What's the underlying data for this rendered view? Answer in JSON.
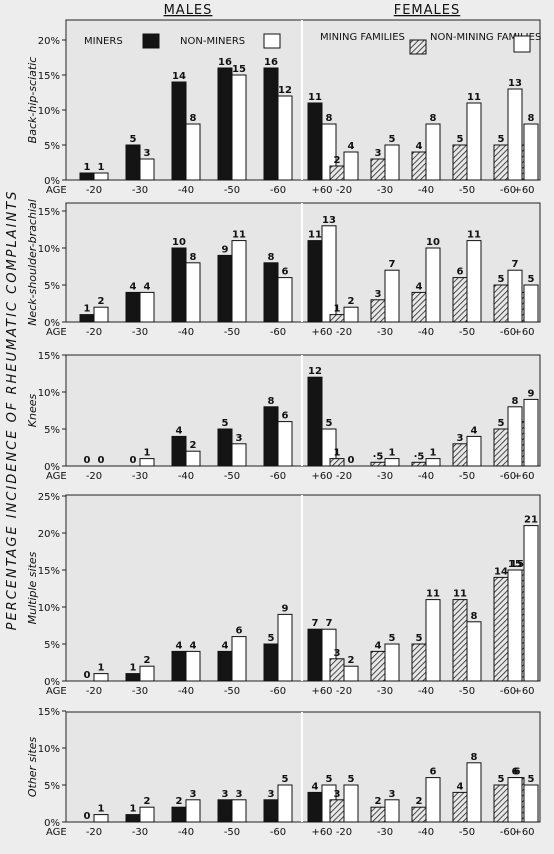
{
  "headers": {
    "males": "MALES",
    "females": "FEMALES"
  },
  "side_title": "PERCENTAGE   INCIDENCE   OF   RHEUMATIC   COMPLAINTS",
  "legend": {
    "males": [
      "MINERS",
      "NON-MINERS"
    ],
    "females": [
      "MINING FAMILIES",
      "NON-MINING FAMILIES"
    ]
  },
  "colors": {
    "miners": "#141414",
    "non_miners": "#ffffff",
    "mining_families": "hatched",
    "non_mining_families": "#ffffff"
  },
  "chart_data": {
    "type": "bar",
    "x_label": "AGE",
    "categories": [
      "-20",
      "-30",
      "-40",
      "-50",
      "-60",
      "+60"
    ],
    "panels": [
      {
        "name": "Back-hip-sciatic",
        "ylim": [
          0,
          20
        ],
        "yticks": [
          "0%",
          "5%",
          "10%",
          "15%",
          "20%"
        ],
        "males": [
          {
            "name": "MINERS",
            "values": [
              1,
              5,
              14,
              16,
              16,
              11
            ],
            "labels": [
              "1",
              "5",
              "14",
              "16",
              "16",
              "11"
            ]
          },
          {
            "name": "NON-MINERS",
            "values": [
              1,
              3,
              8,
              15,
              12,
              8
            ],
            "labels": [
              "1",
              "3",
              "8",
              "15",
              "12",
              "8"
            ]
          }
        ],
        "females": [
          {
            "name": "MINING FAMILIES",
            "values": [
              2,
              3,
              4,
              5,
              5,
              5
            ],
            "labels": [
              "2",
              "3",
              "4",
              "5",
              "5",
              "5"
            ]
          },
          {
            "name": "NON-MINING FAMILIES",
            "values": [
              4,
              5,
              8,
              11,
              13,
              8
            ],
            "labels": [
              "4",
              "5",
              "8",
              "11",
              "13",
              "8"
            ]
          }
        ]
      },
      {
        "name": "Neck-shoulder-brachial",
        "ylim": [
          0,
          15
        ],
        "yticks": [
          "0%",
          "5%",
          "10%",
          "15%"
        ],
        "males": [
          {
            "name": "MINERS",
            "values": [
              1,
              4,
              10,
              9,
              8,
              11
            ],
            "labels": [
              "1",
              "4",
              "10",
              "9",
              "8",
              "11"
            ]
          },
          {
            "name": "NON-MINERS",
            "values": [
              2,
              4,
              8,
              11,
              6,
              13
            ],
            "labels": [
              "2",
              "4",
              "8",
              "11",
              "6",
              "13"
            ]
          }
        ],
        "females": [
          {
            "name": "MINING FAMILIES",
            "values": [
              1,
              3,
              4,
              6,
              5,
              4
            ],
            "labels": [
              "1",
              "3",
              "4",
              "6",
              "5",
              "4"
            ]
          },
          {
            "name": "NON-MINING FAMILIES",
            "values": [
              2,
              7,
              10,
              11,
              7,
              5
            ],
            "labels": [
              "2",
              "7",
              "10",
              "11",
              "7",
              "5"
            ]
          }
        ]
      },
      {
        "name": "Knees",
        "ylim": [
          0,
          15
        ],
        "yticks": [
          "0%",
          "5%",
          "10%",
          "15%"
        ],
        "males": [
          {
            "name": "MINERS",
            "values": [
              0,
              0,
              4,
              5,
              8,
              12
            ],
            "labels": [
              "0",
              "0",
              "4",
              "5",
              "8",
              "12"
            ]
          },
          {
            "name": "NON-MINERS",
            "values": [
              0,
              1,
              2,
              3,
              6,
              5
            ],
            "labels": [
              "0",
              "1",
              "2",
              "3",
              "6",
              "5"
            ]
          }
        ],
        "females": [
          {
            "name": "MINING FAMILIES",
            "values": [
              1,
              0.5,
              0.5,
              3,
              5,
              6
            ],
            "labels": [
              "1",
              "·5",
              "·5",
              "3",
              "5",
              "6"
            ]
          },
          {
            "name": "NON-MINING FAMILIES",
            "values": [
              0,
              1,
              1,
              4,
              8,
              9
            ],
            "labels": [
              "0",
              "1",
              "1",
              "4",
              "8",
              "9"
            ]
          }
        ]
      },
      {
        "name": "Multiple sites",
        "ylim": [
          0,
          25
        ],
        "yticks": [
          "0%",
          "5%",
          "10%",
          "15%",
          "20%",
          "25%"
        ],
        "males": [
          {
            "name": "MINERS",
            "values": [
              0,
              1,
              4,
              4,
              5,
              7
            ],
            "labels": [
              "0",
              "1",
              "4",
              "4",
              "5",
              "7"
            ]
          },
          {
            "name": "NON-MINERS",
            "values": [
              1,
              2,
              4,
              6,
              9,
              7
            ],
            "labels": [
              "1",
              "2",
              "4",
              "6",
              "9",
              "7"
            ]
          }
        ],
        "females": [
          {
            "name": "MINING FAMILIES",
            "values": [
              3,
              4,
              5,
              11,
              14,
              15
            ],
            "labels": [
              "3",
              "4",
              "5",
              "11",
              "14",
              "15"
            ]
          },
          {
            "name": "NON-MINING FAMILIES",
            "values": [
              2,
              5,
              11,
              8,
              15,
              21
            ],
            "labels": [
              "2",
              "5",
              "11",
              "8",
              "15",
              "21"
            ]
          }
        ]
      },
      {
        "name": "Other sites",
        "ylim": [
          0,
          15
        ],
        "yticks": [
          "0%",
          "5%",
          "10%",
          "15%"
        ],
        "males": [
          {
            "name": "MINERS",
            "values": [
              0,
              1,
              2,
              3,
              3,
              4
            ],
            "labels": [
              "0",
              "1",
              "2",
              "3",
              "3",
              "4"
            ]
          },
          {
            "name": "NON-MINERS",
            "values": [
              1,
              2,
              3,
              3,
              5,
              5
            ],
            "labels": [
              "1",
              "2",
              "3",
              "3",
              "5",
              "5"
            ]
          }
        ],
        "females": [
          {
            "name": "MINING FAMILIES",
            "values": [
              3,
              2,
              2,
              4,
              5,
              6
            ],
            "labels": [
              "3",
              "2",
              "2",
              "4",
              "5",
              "6"
            ]
          },
          {
            "name": "NON-MINING FAMILIES",
            "values": [
              5,
              3,
              6,
              8,
              6,
              5
            ],
            "labels": [
              "5",
              "3",
              "6",
              "8",
              "6",
              "5"
            ]
          }
        ]
      }
    ]
  }
}
